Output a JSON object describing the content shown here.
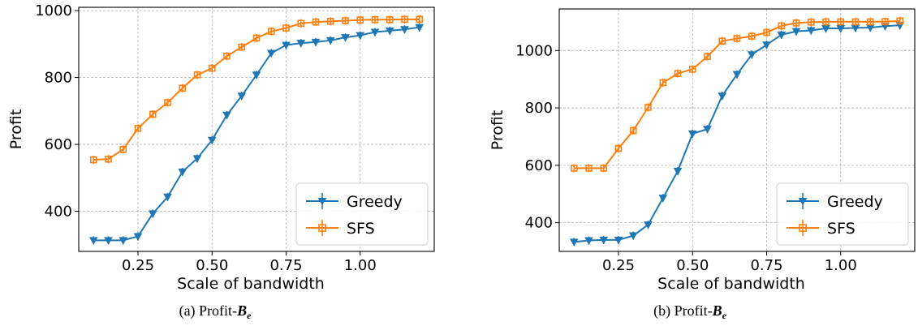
{
  "chart_data": [
    {
      "type": "line",
      "caption": {
        "text": "(a) Profit-",
        "symbol": "B",
        "subscript": "e"
      },
      "xlabel": "Scale of bandwidth",
      "ylabel": "Profit",
      "xlim": [
        0.05,
        1.25
      ],
      "ylim": [
        280,
        1010
      ],
      "xticks": [
        0.25,
        0.5,
        0.75,
        1.0
      ],
      "xtick_labels": [
        "0.25",
        "0.50",
        "0.75",
        "1.00"
      ],
      "yticks": [
        400,
        600,
        800,
        1000
      ],
      "ytick_labels": [
        "400",
        "600",
        "800",
        "1000"
      ],
      "grid": true,
      "legend": "lower-right",
      "x": [
        0.1,
        0.15,
        0.2,
        0.25,
        0.3,
        0.35,
        0.4,
        0.45,
        0.5,
        0.55,
        0.6,
        0.65,
        0.7,
        0.75,
        0.8,
        0.85,
        0.9,
        0.95,
        1.0,
        1.05,
        1.1,
        1.15,
        1.2
      ],
      "series": [
        {
          "name": "Greedy",
          "color": "#1f77b4",
          "marker": "triangle-down",
          "values": [
            313,
            313,
            313,
            325,
            393,
            443,
            518,
            558,
            613,
            688,
            745,
            808,
            873,
            897,
            903,
            906,
            911,
            920,
            926,
            936,
            940,
            944,
            950
          ]
        },
        {
          "name": "SFS",
          "color": "#ff7f0e",
          "marker": "square",
          "values": [
            554,
            556,
            585,
            648,
            690,
            725,
            768,
            808,
            828,
            864,
            891,
            918,
            938,
            948,
            962,
            966,
            968,
            970,
            972,
            973,
            973,
            974,
            974
          ]
        }
      ]
    },
    {
      "type": "line",
      "caption": {
        "text": "(b) Profit-",
        "symbol": "B",
        "subscript": "e"
      },
      "xlabel": "Scale of bandwidth",
      "ylabel": "Profit",
      "xlim": [
        0.05,
        1.25
      ],
      "ylim": [
        300,
        1145
      ],
      "xticks": [
        0.25,
        0.5,
        0.75,
        1.0
      ],
      "xtick_labels": [
        "0.25",
        "0.50",
        "0.75",
        "1.00"
      ],
      "yticks": [
        400,
        600,
        800,
        1000
      ],
      "ytick_labels": [
        "400",
        "600",
        "800",
        "1000"
      ],
      "grid": true,
      "legend": "lower-right",
      "x": [
        0.1,
        0.15,
        0.2,
        0.25,
        0.3,
        0.35,
        0.4,
        0.45,
        0.5,
        0.55,
        0.6,
        0.65,
        0.7,
        0.75,
        0.8,
        0.85,
        0.9,
        0.95,
        1.0,
        1.05,
        1.1,
        1.15,
        1.2
      ],
      "series": [
        {
          "name": "Greedy",
          "color": "#1f77b4",
          "marker": "triangle-down",
          "values": [
            333,
            338,
            340,
            340,
            355,
            393,
            486,
            580,
            710,
            726,
            842,
            917,
            986,
            1020,
            1055,
            1067,
            1070,
            1077,
            1077,
            1079,
            1080,
            1085,
            1088
          ]
        },
        {
          "name": "SFS",
          "color": "#ff7f0e",
          "marker": "square",
          "values": [
            590,
            590,
            590,
            659,
            721,
            802,
            888,
            920,
            935,
            979,
            1033,
            1042,
            1050,
            1063,
            1086,
            1096,
            1099,
            1100,
            1100,
            1100,
            1100,
            1101,
            1103
          ]
        }
      ]
    }
  ]
}
